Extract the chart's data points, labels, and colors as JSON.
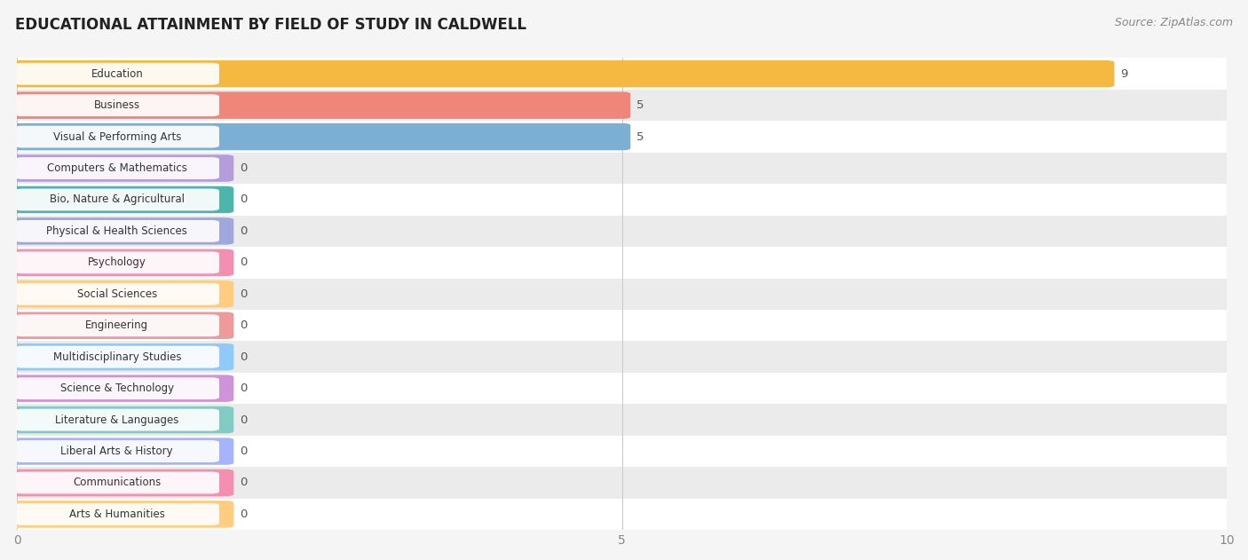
{
  "title": "EDUCATIONAL ATTAINMENT BY FIELD OF STUDY IN CALDWELL",
  "source": "Source: ZipAtlas.com",
  "categories": [
    "Education",
    "Business",
    "Visual & Performing Arts",
    "Computers & Mathematics",
    "Bio, Nature & Agricultural",
    "Physical & Health Sciences",
    "Psychology",
    "Social Sciences",
    "Engineering",
    "Multidisciplinary Studies",
    "Science & Technology",
    "Literature & Languages",
    "Liberal Arts & History",
    "Communications",
    "Arts & Humanities"
  ],
  "values": [
    9,
    5,
    5,
    0,
    0,
    0,
    0,
    0,
    0,
    0,
    0,
    0,
    0,
    0,
    0
  ],
  "bar_colors": [
    "#f5b942",
    "#f0857a",
    "#7bafd4",
    "#b39ddb",
    "#4db6ac",
    "#9fa8da",
    "#f48fb1",
    "#ffcc80",
    "#ef9a9a",
    "#90caf9",
    "#ce93d8",
    "#80cbc4",
    "#a5b4fc",
    "#f48fb1",
    "#ffcc80"
  ],
  "xlim": [
    0,
    10
  ],
  "xticks": [
    0,
    5,
    10
  ],
  "background_color": "#f5f5f5",
  "plot_bg_color": "#f5f5f5",
  "row_colors": [
    "#ffffff",
    "#ebebeb"
  ],
  "zero_bar_width": 1.72,
  "title_fontsize": 12,
  "source_fontsize": 9,
  "bar_height": 0.72,
  "label_font_size": 8.5,
  "value_font_size": 9.5
}
